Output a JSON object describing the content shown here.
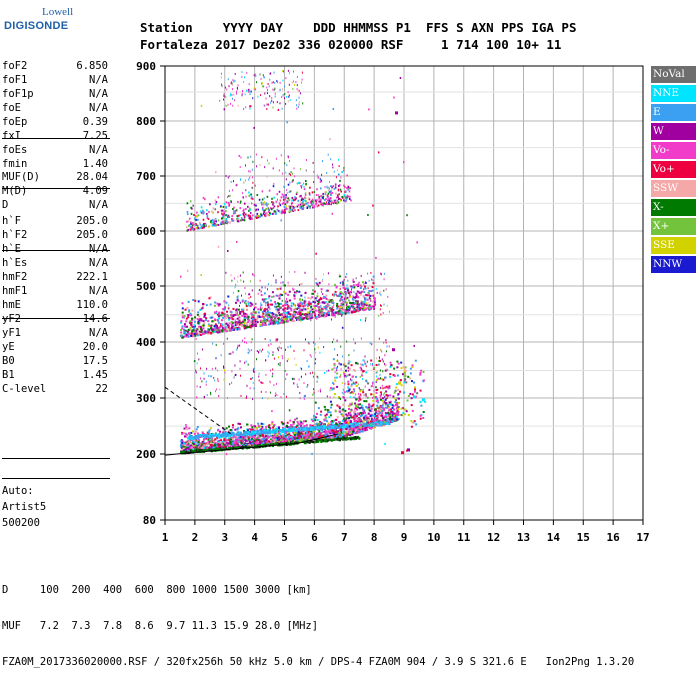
{
  "logo": {
    "line1": "Lowell",
    "line2": "DIGISONDE"
  },
  "header": {
    "line1": "Station    YYYY DAY    DDD HHMMSS P1  FFS S AXN PPS IGA PS",
    "line2": "Fortaleza 2017 Dez02 336 020000 RSF     1 714 100 10+ 11"
  },
  "params": [
    {
      "k": "foF2",
      "v": "6.850"
    },
    {
      "k": "foF1",
      "v": "N/A"
    },
    {
      "k": "foF1p",
      "v": "N/A"
    },
    {
      "k": "foE",
      "v": "N/A"
    },
    {
      "k": "foEp",
      "v": "0.39"
    },
    {
      "k": "fxI",
      "v": "7.25"
    },
    {
      "k": "foEs",
      "v": "N/A"
    },
    {
      "k": "fmin",
      "v": "1.40"
    },
    {
      "k": "MUF(D)",
      "v": "28.04"
    },
    {
      "k": "M(D)",
      "v": "4.09"
    },
    {
      "k": "D",
      "v": "N/A"
    },
    {
      "k": "h`F",
      "v": "205.0"
    },
    {
      "k": "h`F2",
      "v": "205.0"
    },
    {
      "k": "h`E",
      "v": "N/A"
    },
    {
      "k": "h`Es",
      "v": "N/A"
    },
    {
      "k": "hmF2",
      "v": "222.1"
    },
    {
      "k": "hmF1",
      "v": "N/A"
    },
    {
      "k": "hmE",
      "v": "110.0"
    },
    {
      "k": "yF2",
      "v": "14.6"
    },
    {
      "k": "yF1",
      "v": "N/A"
    },
    {
      "k": "yE",
      "v": "20.0"
    },
    {
      "k": "B0",
      "v": "17.5"
    },
    {
      "k": "B1",
      "v": "1.45"
    },
    {
      "k": "C-level",
      "v": "22"
    }
  ],
  "auto": [
    "Auto:",
    "Artist5",
    "500200"
  ],
  "legend": [
    {
      "label": "NoVal",
      "color": "#6e6e6e"
    },
    {
      "label": "NNE",
      "color": "#00e5ff"
    },
    {
      "label": "E",
      "color": "#3ba0f2"
    },
    {
      "label": "W",
      "color": "#a000a0"
    },
    {
      "label": "Vo-",
      "color": "#f03cc8"
    },
    {
      "label": "Vo+",
      "color": "#ee0040"
    },
    {
      "label": "SSW",
      "color": "#f5a8a8"
    },
    {
      "label": "X-",
      "color": "#007a00"
    },
    {
      "label": "X+",
      "color": "#73c43c"
    },
    {
      "label": "SSE",
      "color": "#d2d200"
    },
    {
      "label": "NNW",
      "color": "#1a1ad0"
    }
  ],
  "axes": {
    "x_ticks": [
      "1",
      "2",
      "3",
      "4",
      "5",
      "6",
      "7",
      "8",
      "9",
      "10",
      "11",
      "12",
      "13",
      "14",
      "15",
      "16",
      "17"
    ],
    "y_ticks": [
      "80",
      "200",
      "300",
      "400",
      "500",
      "600",
      "700",
      "800",
      "900"
    ],
    "x_range": [
      1,
      17
    ]
  },
  "footer": {
    "line1": "D     100  200  400  600  800 1000 1500 3000 [km]",
    "line2": "MUF   7.2  7.3  7.8  8.6  9.7 11.3 15.9 28.0 [MHz]",
    "line3": "FZA0M_2017336020000.RSF / 320fx256h 50 kHz 5.0 km / DPS-4 FZA0M 904 / 3.9 S 321.6 E   Ion2Png 1.3.20"
  }
}
